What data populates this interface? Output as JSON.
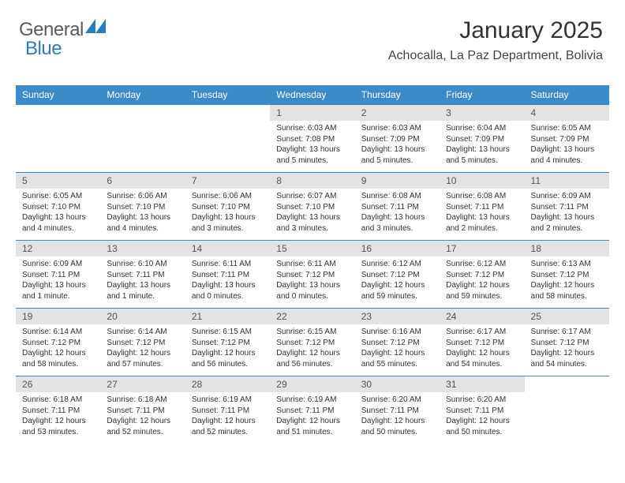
{
  "logo": {
    "text1": "General",
    "text2": "Blue",
    "color1": "#5a5a5a",
    "color2": "#2d7bbf",
    "shape_color": "#2d7bbf"
  },
  "header": {
    "month": "January 2025",
    "location": "Achocalla, La Paz Department, Bolivia"
  },
  "colors": {
    "th_bg": "#3b8bc9",
    "th_fg": "#ffffff",
    "daynum_bg": "#e3e3e3",
    "rule": "#3b8bc9"
  },
  "weekdays": [
    "Sunday",
    "Monday",
    "Tuesday",
    "Wednesday",
    "Thursday",
    "Friday",
    "Saturday"
  ],
  "weeks": [
    [
      null,
      null,
      null,
      {
        "n": "1",
        "sunrise": "Sunrise: 6:03 AM",
        "sunset": "Sunset: 7:08 PM",
        "daylight": "Daylight: 13 hours and 5 minutes."
      },
      {
        "n": "2",
        "sunrise": "Sunrise: 6:03 AM",
        "sunset": "Sunset: 7:09 PM",
        "daylight": "Daylight: 13 hours and 5 minutes."
      },
      {
        "n": "3",
        "sunrise": "Sunrise: 6:04 AM",
        "sunset": "Sunset: 7:09 PM",
        "daylight": "Daylight: 13 hours and 5 minutes."
      },
      {
        "n": "4",
        "sunrise": "Sunrise: 6:05 AM",
        "sunset": "Sunset: 7:09 PM",
        "daylight": "Daylight: 13 hours and 4 minutes."
      }
    ],
    [
      {
        "n": "5",
        "sunrise": "Sunrise: 6:05 AM",
        "sunset": "Sunset: 7:10 PM",
        "daylight": "Daylight: 13 hours and 4 minutes."
      },
      {
        "n": "6",
        "sunrise": "Sunrise: 6:06 AM",
        "sunset": "Sunset: 7:10 PM",
        "daylight": "Daylight: 13 hours and 4 minutes."
      },
      {
        "n": "7",
        "sunrise": "Sunrise: 6:06 AM",
        "sunset": "Sunset: 7:10 PM",
        "daylight": "Daylight: 13 hours and 3 minutes."
      },
      {
        "n": "8",
        "sunrise": "Sunrise: 6:07 AM",
        "sunset": "Sunset: 7:10 PM",
        "daylight": "Daylight: 13 hours and 3 minutes."
      },
      {
        "n": "9",
        "sunrise": "Sunrise: 6:08 AM",
        "sunset": "Sunset: 7:11 PM",
        "daylight": "Daylight: 13 hours and 3 minutes."
      },
      {
        "n": "10",
        "sunrise": "Sunrise: 6:08 AM",
        "sunset": "Sunset: 7:11 PM",
        "daylight": "Daylight: 13 hours and 2 minutes."
      },
      {
        "n": "11",
        "sunrise": "Sunrise: 6:09 AM",
        "sunset": "Sunset: 7:11 PM",
        "daylight": "Daylight: 13 hours and 2 minutes."
      }
    ],
    [
      {
        "n": "12",
        "sunrise": "Sunrise: 6:09 AM",
        "sunset": "Sunset: 7:11 PM",
        "daylight": "Daylight: 13 hours and 1 minute."
      },
      {
        "n": "13",
        "sunrise": "Sunrise: 6:10 AM",
        "sunset": "Sunset: 7:11 PM",
        "daylight": "Daylight: 13 hours and 1 minute."
      },
      {
        "n": "14",
        "sunrise": "Sunrise: 6:11 AM",
        "sunset": "Sunset: 7:11 PM",
        "daylight": "Daylight: 13 hours and 0 minutes."
      },
      {
        "n": "15",
        "sunrise": "Sunrise: 6:11 AM",
        "sunset": "Sunset: 7:12 PM",
        "daylight": "Daylight: 13 hours and 0 minutes."
      },
      {
        "n": "16",
        "sunrise": "Sunrise: 6:12 AM",
        "sunset": "Sunset: 7:12 PM",
        "daylight": "Daylight: 12 hours and 59 minutes."
      },
      {
        "n": "17",
        "sunrise": "Sunrise: 6:12 AM",
        "sunset": "Sunset: 7:12 PM",
        "daylight": "Daylight: 12 hours and 59 minutes."
      },
      {
        "n": "18",
        "sunrise": "Sunrise: 6:13 AM",
        "sunset": "Sunset: 7:12 PM",
        "daylight": "Daylight: 12 hours and 58 minutes."
      }
    ],
    [
      {
        "n": "19",
        "sunrise": "Sunrise: 6:14 AM",
        "sunset": "Sunset: 7:12 PM",
        "daylight": "Daylight: 12 hours and 58 minutes."
      },
      {
        "n": "20",
        "sunrise": "Sunrise: 6:14 AM",
        "sunset": "Sunset: 7:12 PM",
        "daylight": "Daylight: 12 hours and 57 minutes."
      },
      {
        "n": "21",
        "sunrise": "Sunrise: 6:15 AM",
        "sunset": "Sunset: 7:12 PM",
        "daylight": "Daylight: 12 hours and 56 minutes."
      },
      {
        "n": "22",
        "sunrise": "Sunrise: 6:15 AM",
        "sunset": "Sunset: 7:12 PM",
        "daylight": "Daylight: 12 hours and 56 minutes."
      },
      {
        "n": "23",
        "sunrise": "Sunrise: 6:16 AM",
        "sunset": "Sunset: 7:12 PM",
        "daylight": "Daylight: 12 hours and 55 minutes."
      },
      {
        "n": "24",
        "sunrise": "Sunrise: 6:17 AM",
        "sunset": "Sunset: 7:12 PM",
        "daylight": "Daylight: 12 hours and 54 minutes."
      },
      {
        "n": "25",
        "sunrise": "Sunrise: 6:17 AM",
        "sunset": "Sunset: 7:12 PM",
        "daylight": "Daylight: 12 hours and 54 minutes."
      }
    ],
    [
      {
        "n": "26",
        "sunrise": "Sunrise: 6:18 AM",
        "sunset": "Sunset: 7:11 PM",
        "daylight": "Daylight: 12 hours and 53 minutes."
      },
      {
        "n": "27",
        "sunrise": "Sunrise: 6:18 AM",
        "sunset": "Sunset: 7:11 PM",
        "daylight": "Daylight: 12 hours and 52 minutes."
      },
      {
        "n": "28",
        "sunrise": "Sunrise: 6:19 AM",
        "sunset": "Sunset: 7:11 PM",
        "daylight": "Daylight: 12 hours and 52 minutes."
      },
      {
        "n": "29",
        "sunrise": "Sunrise: 6:19 AM",
        "sunset": "Sunset: 7:11 PM",
        "daylight": "Daylight: 12 hours and 51 minutes."
      },
      {
        "n": "30",
        "sunrise": "Sunrise: 6:20 AM",
        "sunset": "Sunset: 7:11 PM",
        "daylight": "Daylight: 12 hours and 50 minutes."
      },
      {
        "n": "31",
        "sunrise": "Sunrise: 6:20 AM",
        "sunset": "Sunset: 7:11 PM",
        "daylight": "Daylight: 12 hours and 50 minutes."
      },
      null
    ]
  ]
}
